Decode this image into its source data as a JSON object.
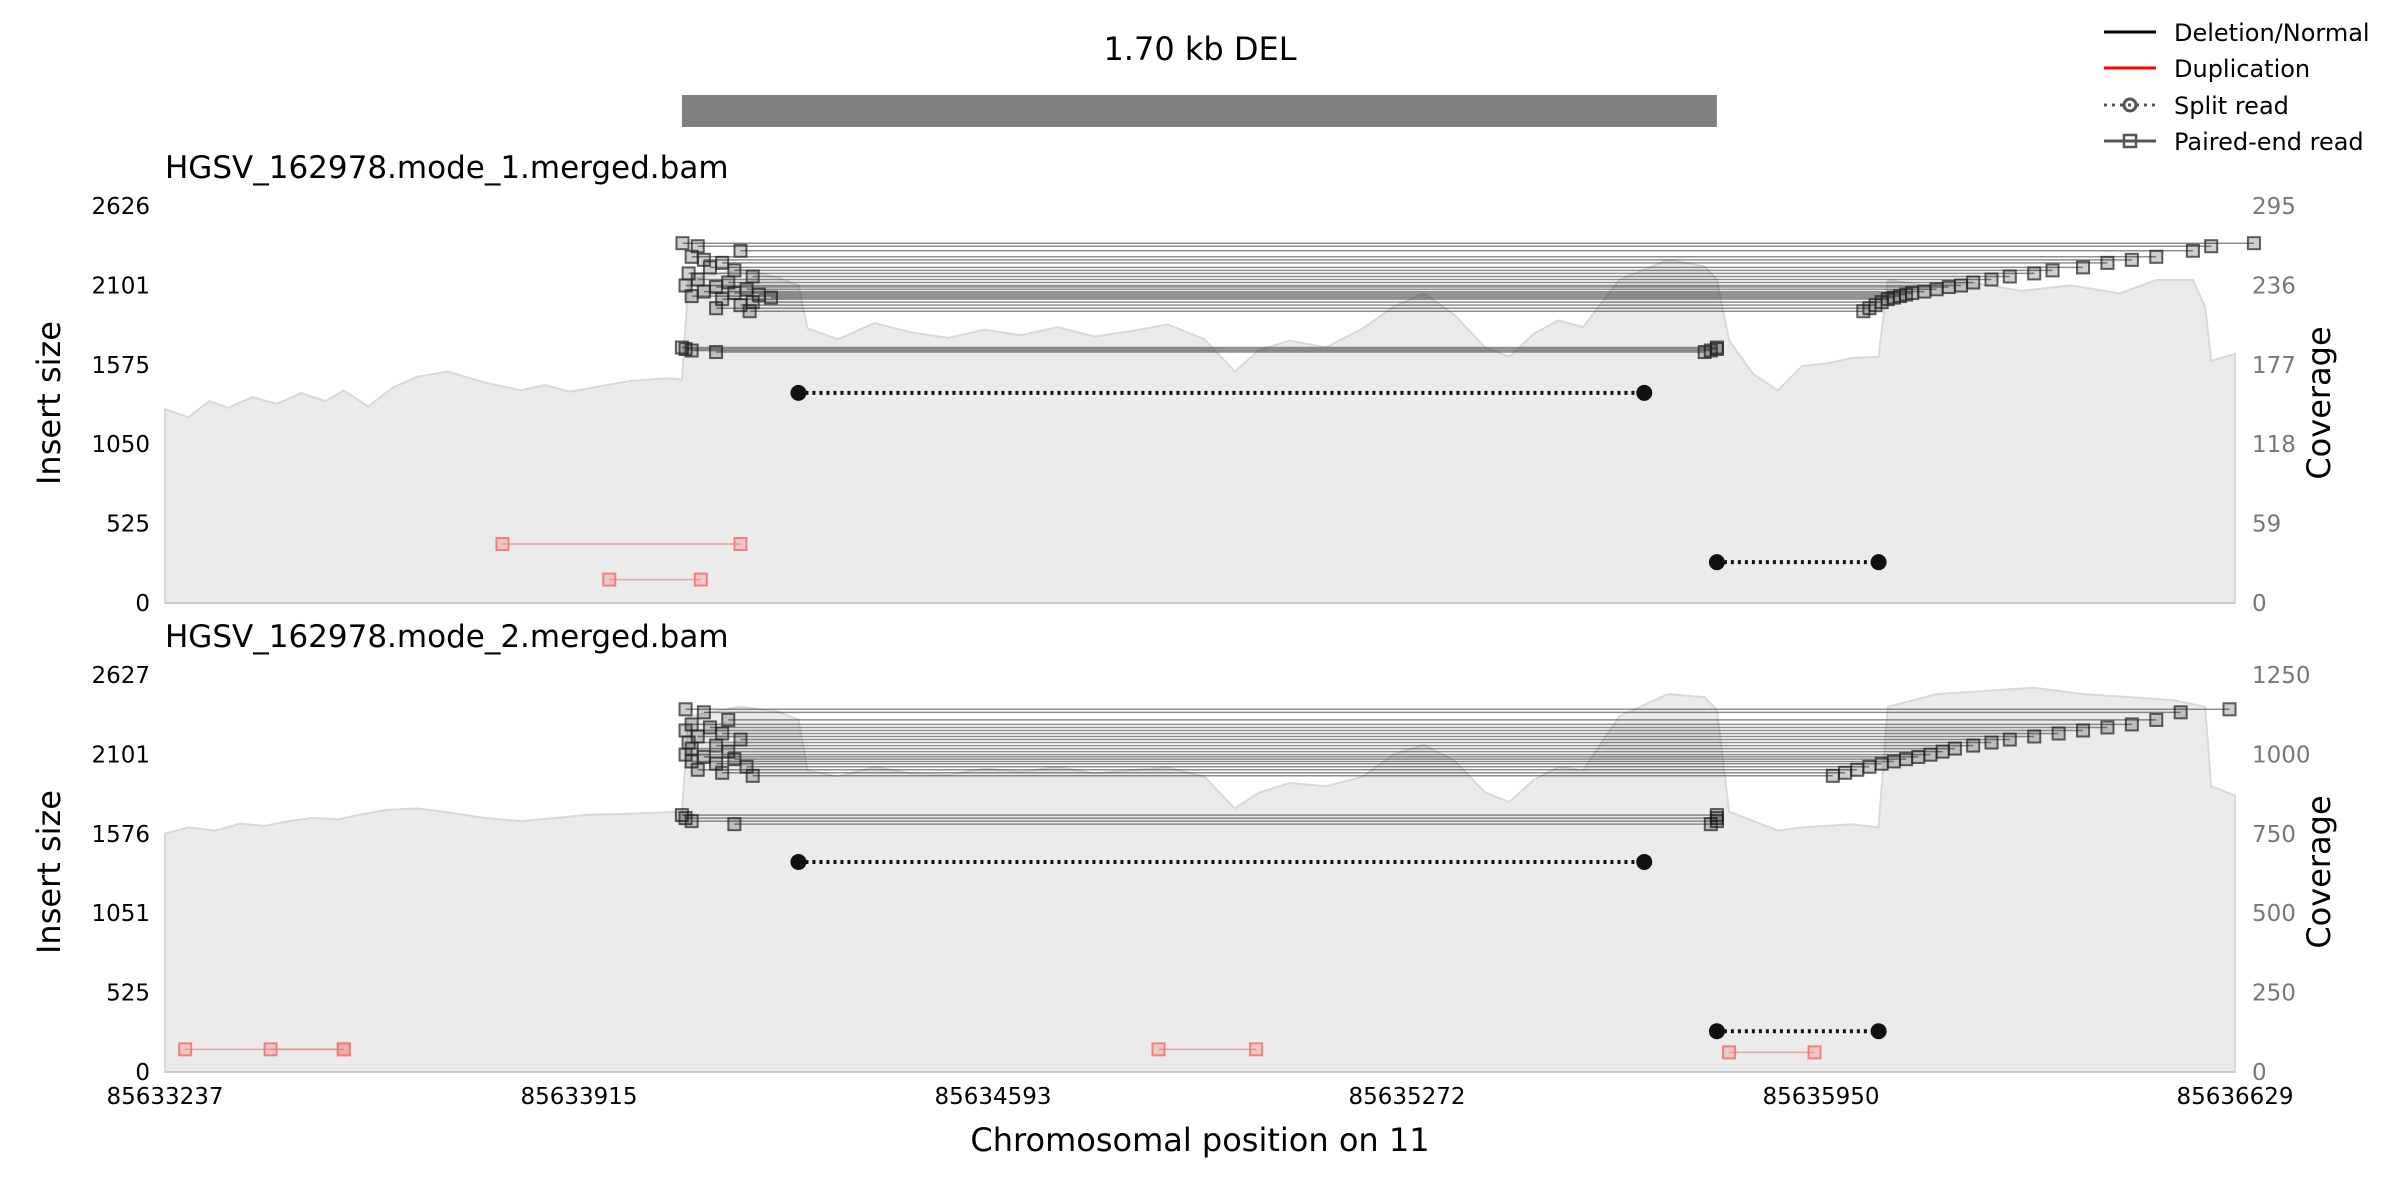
{
  "title": "1.70 kb DEL",
  "legend": [
    {
      "label": "Deletion/Normal",
      "style": "solid",
      "color": "#000000"
    },
    {
      "label": "Duplication",
      "style": "solid",
      "color": "#ff0000"
    },
    {
      "label": "Split read",
      "style": "dotted-circle",
      "color": "#555555"
    },
    {
      "label": "Paired-end read",
      "style": "solid-square",
      "color": "#555555"
    }
  ],
  "xlabel": "Chromosomal position on 11",
  "chart_data": [
    {
      "type": "scatter",
      "title": "HGSV_162978.mode_1.merged.bam",
      "ylabel": "Insert size",
      "y2label": "Coverage",
      "xlim": [
        85633237,
        85636629
      ],
      "ylim": [
        0,
        2626
      ],
      "y2lim": [
        0,
        295
      ],
      "xticks": [
        "85633237",
        "85633915",
        "85634593",
        "85635272",
        "85635950",
        "85636629"
      ],
      "yticks": [
        "0",
        "525",
        "1050",
        "1575",
        "2101",
        "2626"
      ],
      "y2ticks": [
        "0",
        "59",
        "118",
        "177",
        "236",
        "295"
      ],
      "sv_region": [
        85634084,
        85635780
      ],
      "split_reads": [
        {
          "x1": 85634275,
          "x2": 85635661,
          "y": 1390
        },
        {
          "x1": 85635780,
          "x2": 85636045,
          "y": 270
        }
      ],
      "paired_reads_del": [
        {
          "x1": 85634084,
          "x2": 85635780,
          "y": 1690
        },
        {
          "x1": 85634090,
          "x2": 85635780,
          "y": 1680
        },
        {
          "x1": 85634100,
          "x2": 85635770,
          "y": 1670
        },
        {
          "x1": 85634140,
          "x2": 85635760,
          "y": 1660
        },
        {
          "x1": 85634085,
          "x2": 85636660,
          "y": 2380
        },
        {
          "x1": 85634110,
          "x2": 85636590,
          "y": 2360
        },
        {
          "x1": 85634180,
          "x2": 85636560,
          "y": 2330
        },
        {
          "x1": 85634100,
          "x2": 85636500,
          "y": 2290
        },
        {
          "x1": 85634120,
          "x2": 85636460,
          "y": 2270
        },
        {
          "x1": 85634150,
          "x2": 85636420,
          "y": 2250
        },
        {
          "x1": 85634130,
          "x2": 85636380,
          "y": 2220
        },
        {
          "x1": 85634170,
          "x2": 85636330,
          "y": 2200
        },
        {
          "x1": 85634095,
          "x2": 85636300,
          "y": 2180
        },
        {
          "x1": 85634200,
          "x2": 85636260,
          "y": 2160
        },
        {
          "x1": 85634110,
          "x2": 85636230,
          "y": 2140
        },
        {
          "x1": 85634160,
          "x2": 85636200,
          "y": 2120
        },
        {
          "x1": 85634090,
          "x2": 85636180,
          "y": 2100
        },
        {
          "x1": 85634140,
          "x2": 85636160,
          "y": 2090
        },
        {
          "x1": 85634190,
          "x2": 85636140,
          "y": 2075
        },
        {
          "x1": 85634120,
          "x2": 85636120,
          "y": 2060
        },
        {
          "x1": 85634170,
          "x2": 85636100,
          "y": 2050
        },
        {
          "x1": 85634210,
          "x2": 85636090,
          "y": 2040
        },
        {
          "x1": 85634100,
          "x2": 85636080,
          "y": 2030
        },
        {
          "x1": 85634230,
          "x2": 85636070,
          "y": 2020
        },
        {
          "x1": 85634150,
          "x2": 85636060,
          "y": 2010
        },
        {
          "x1": 85634200,
          "x2": 85636050,
          "y": 1990
        },
        {
          "x1": 85634180,
          "x2": 85636040,
          "y": 1970
        },
        {
          "x1": 85634140,
          "x2": 85636030,
          "y": 1950
        },
        {
          "x1": 85634195,
          "x2": 85636020,
          "y": 1930
        }
      ],
      "paired_reads_dup": [
        {
          "x1": 85633790,
          "x2": 85634180,
          "y": 390
        },
        {
          "x1": 85633965,
          "x2": 85634115,
          "y": 155
        }
      ],
      "coverage": [
        [
          85633237,
          144
        ],
        [
          85633275,
          138
        ],
        [
          85633310,
          150
        ],
        [
          85633340,
          145
        ],
        [
          85633380,
          153
        ],
        [
          85633420,
          148
        ],
        [
          85633460,
          156
        ],
        [
          85633500,
          150
        ],
        [
          85633530,
          158
        ],
        [
          85633570,
          146
        ],
        [
          85633610,
          160
        ],
        [
          85633650,
          168
        ],
        [
          85633700,
          172
        ],
        [
          85633760,
          164
        ],
        [
          85633820,
          158
        ],
        [
          85633860,
          162
        ],
        [
          85633900,
          157
        ],
        [
          85633950,
          161
        ],
        [
          85634000,
          165
        ],
        [
          85634060,
          167
        ],
        [
          85634084,
          166
        ],
        [
          85634095,
          240
        ],
        [
          85634180,
          248
        ],
        [
          85634240,
          242
        ],
        [
          85634275,
          236
        ],
        [
          85634290,
          204
        ],
        [
          85634340,
          196
        ],
        [
          85634400,
          208
        ],
        [
          85634460,
          201
        ],
        [
          85634520,
          197
        ],
        [
          85634580,
          203
        ],
        [
          85634640,
          199
        ],
        [
          85634700,
          205
        ],
        [
          85634760,
          198
        ],
        [
          85634820,
          202
        ],
        [
          85634880,
          207
        ],
        [
          85634940,
          196
        ],
        [
          85634990,
          172
        ],
        [
          85635030,
          188
        ],
        [
          85635080,
          195
        ],
        [
          85635140,
          190
        ],
        [
          85635200,
          204
        ],
        [
          85635250,
          220
        ],
        [
          85635300,
          230
        ],
        [
          85635350,
          214
        ],
        [
          85635400,
          190
        ],
        [
          85635440,
          183
        ],
        [
          85635480,
          200
        ],
        [
          85635520,
          210
        ],
        [
          85635561,
          205
        ],
        [
          85635620,
          240
        ],
        [
          85635700,
          255
        ],
        [
          85635760,
          250
        ],
        [
          85635780,
          240
        ],
        [
          85635800,
          195
        ],
        [
          85635840,
          170
        ],
        [
          85635880,
          158
        ],
        [
          85635920,
          176
        ],
        [
          85635960,
          178
        ],
        [
          85636000,
          182
        ],
        [
          85636045,
          183
        ],
        [
          85636060,
          240
        ],
        [
          85636120,
          236
        ],
        [
          85636200,
          238
        ],
        [
          85636280,
          232
        ],
        [
          85636360,
          236
        ],
        [
          85636440,
          230
        ],
        [
          85636500,
          240
        ],
        [
          85636560,
          240
        ],
        [
          85636580,
          220
        ],
        [
          85636590,
          180
        ],
        [
          85636629,
          185
        ]
      ]
    },
    {
      "type": "scatter",
      "title": "HGSV_162978.mode_2.merged.bam",
      "ylabel": "Insert size",
      "y2label": "Coverage",
      "xlim": [
        85633237,
        85636629
      ],
      "ylim": [
        0,
        2627
      ],
      "y2lim": [
        0,
        1250
      ],
      "xticks": [
        "85633237",
        "85633915",
        "85634593",
        "85635272",
        "85635950",
        "85636629"
      ],
      "yticks": [
        "0",
        "525",
        "1051",
        "1576",
        "2101",
        "2627"
      ],
      "y2ticks": [
        "0",
        "250",
        "500",
        "750",
        "1000",
        "1250"
      ],
      "split_reads": [
        {
          "x1": 85634275,
          "x2": 85635661,
          "y": 1390
        },
        {
          "x1": 85635780,
          "x2": 85636045,
          "y": 270
        }
      ],
      "paired_reads_del": [
        {
          "x1": 85634084,
          "x2": 85635780,
          "y": 1700
        },
        {
          "x1": 85634090,
          "x2": 85635780,
          "y": 1680
        },
        {
          "x1": 85634100,
          "x2": 85635780,
          "y": 1660
        },
        {
          "x1": 85634170,
          "x2": 85635770,
          "y": 1640
        },
        {
          "x1": 85634090,
          "x2": 85636620,
          "y": 2400
        },
        {
          "x1": 85634120,
          "x2": 85636540,
          "y": 2380
        },
        {
          "x1": 85634160,
          "x2": 85636500,
          "y": 2330
        },
        {
          "x1": 85634100,
          "x2": 85636460,
          "y": 2300
        },
        {
          "x1": 85634130,
          "x2": 85636420,
          "y": 2280
        },
        {
          "x1": 85634090,
          "x2": 85636380,
          "y": 2260
        },
        {
          "x1": 85634150,
          "x2": 85636340,
          "y": 2240
        },
        {
          "x1": 85634110,
          "x2": 85636300,
          "y": 2220
        },
        {
          "x1": 85634180,
          "x2": 85636260,
          "y": 2200
        },
        {
          "x1": 85634095,
          "x2": 85636230,
          "y": 2180
        },
        {
          "x1": 85634140,
          "x2": 85636200,
          "y": 2160
        },
        {
          "x1": 85634100,
          "x2": 85636170,
          "y": 2140
        },
        {
          "x1": 85634160,
          "x2": 85636150,
          "y": 2120
        },
        {
          "x1": 85634090,
          "x2": 85636130,
          "y": 2100
        },
        {
          "x1": 85634120,
          "x2": 85636110,
          "y": 2085
        },
        {
          "x1": 85634170,
          "x2": 85636090,
          "y": 2070
        },
        {
          "x1": 85634100,
          "x2": 85636070,
          "y": 2055
        },
        {
          "x1": 85634140,
          "x2": 85636050,
          "y": 2040
        },
        {
          "x1": 85634190,
          "x2": 85636030,
          "y": 2020
        },
        {
          "x1": 85634110,
          "x2": 85636010,
          "y": 2000
        },
        {
          "x1": 85634150,
          "x2": 85635990,
          "y": 1980
        },
        {
          "x1": 85634200,
          "x2": 85635970,
          "y": 1960
        }
      ],
      "paired_reads_dup": [
        {
          "x1": 85633270,
          "x2": 85633530,
          "y": 150
        },
        {
          "x1": 85633410,
          "x2": 85633530,
          "y": 150
        },
        {
          "x1": 85634865,
          "x2": 85635025,
          "y": 150
        },
        {
          "x1": 85635800,
          "x2": 85635940,
          "y": 130
        }
      ],
      "coverage": [
        [
          85633237,
          750
        ],
        [
          85633275,
          770
        ],
        [
          85633320,
          760
        ],
        [
          85633360,
          782
        ],
        [
          85633400,
          775
        ],
        [
          85633440,
          790
        ],
        [
          85633480,
          800
        ],
        [
          85633520,
          795
        ],
        [
          85633560,
          812
        ],
        [
          85633600,
          825
        ],
        [
          85633650,
          830
        ],
        [
          85633700,
          818
        ],
        [
          85633760,
          800
        ],
        [
          85633820,
          790
        ],
        [
          85633880,
          800
        ],
        [
          85633930,
          810
        ],
        [
          85633980,
          812
        ],
        [
          85634040,
          816
        ],
        [
          85634084,
          820
        ],
        [
          85634095,
          1120
        ],
        [
          85634180,
          1150
        ],
        [
          85634240,
          1135
        ],
        [
          85634275,
          1110
        ],
        [
          85634290,
          950
        ],
        [
          85634340,
          930
        ],
        [
          85634400,
          960
        ],
        [
          85634460,
          940
        ],
        [
          85634520,
          935
        ],
        [
          85634580,
          955
        ],
        [
          85634640,
          945
        ],
        [
          85634700,
          960
        ],
        [
          85634760,
          940
        ],
        [
          85634820,
          950
        ],
        [
          85634880,
          958
        ],
        [
          85634940,
          930
        ],
        [
          85634990,
          830
        ],
        [
          85635030,
          880
        ],
        [
          85635080,
          910
        ],
        [
          85635140,
          900
        ],
        [
          85635200,
          930
        ],
        [
          85635250,
          1000
        ],
        [
          85635300,
          1030
        ],
        [
          85635350,
          980
        ],
        [
          85635400,
          880
        ],
        [
          85635440,
          850
        ],
        [
          85635480,
          920
        ],
        [
          85635520,
          960
        ],
        [
          85635561,
          950
        ],
        [
          85635620,
          1120
        ],
        [
          85635700,
          1190
        ],
        [
          85635760,
          1180
        ],
        [
          85635780,
          1140
        ],
        [
          85635800,
          820
        ],
        [
          85635840,
          790
        ],
        [
          85635880,
          760
        ],
        [
          85635920,
          770
        ],
        [
          85635960,
          775
        ],
        [
          85636000,
          780
        ],
        [
          85636045,
          770
        ],
        [
          85636060,
          1150
        ],
        [
          85636140,
          1190
        ],
        [
          85636220,
          1200
        ],
        [
          85636300,
          1210
        ],
        [
          85636380,
          1190
        ],
        [
          85636460,
          1180
        ],
        [
          85636530,
          1170
        ],
        [
          85636580,
          1150
        ],
        [
          85636590,
          900
        ],
        [
          85636629,
          870
        ]
      ]
    }
  ]
}
